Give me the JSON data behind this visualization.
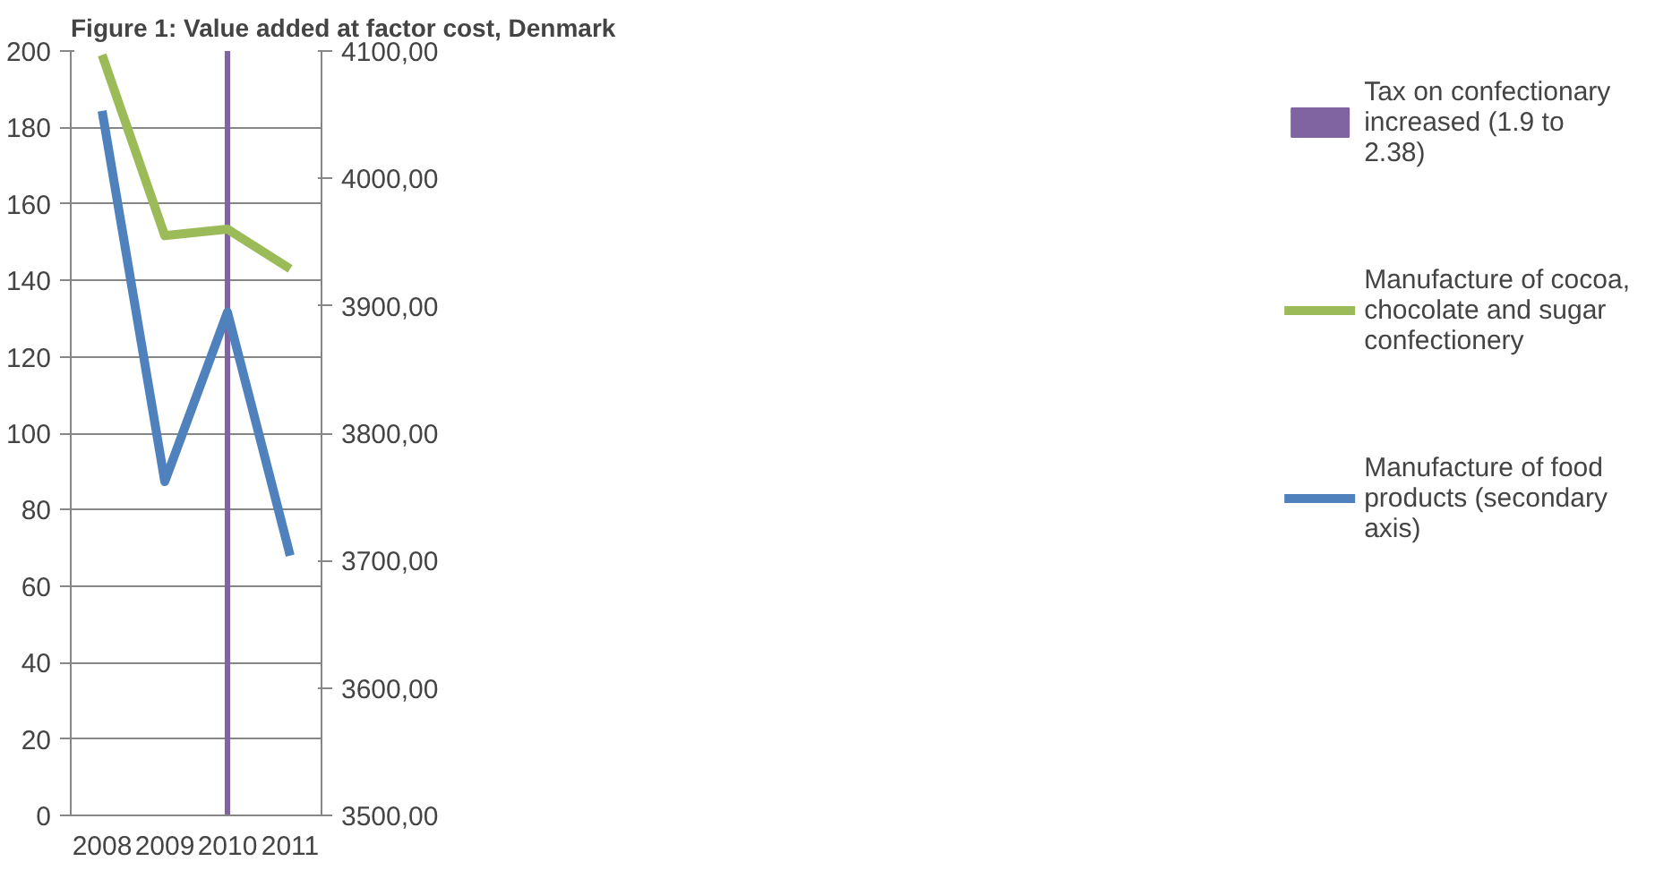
{
  "chart_data": {
    "type": "line",
    "title": "Figure 1: Value added at factor cost, Denmark",
    "categories": [
      "2008",
      "2009",
      "2010",
      "2011"
    ],
    "series": [
      {
        "name": "Tax on confectionary increased (1.9 to 2.38)",
        "type": "bar",
        "color": "#8064a2",
        "values": [
          null,
          null,
          200,
          null
        ]
      },
      {
        "name": "Manufacture of cocoa, chocolate and sugar confectionery",
        "color": "#9bbb59",
        "values": [
          199,
          151.7,
          153.4,
          143
        ]
      },
      {
        "name": "Manufacture of food products (secondary axis)",
        "color": "#4f81bd",
        "axis": "y2",
        "values": [
          4053,
          3762,
          3895,
          3704
        ]
      }
    ],
    "ylim": [
      0,
      200
    ],
    "yticks": [
      0,
      20,
      40,
      60,
      80,
      100,
      120,
      140,
      160,
      180,
      200
    ],
    "y2lim": [
      3500,
      4100
    ],
    "y2ticks": [
      {
        "value": 3500,
        "label": "3500,00"
      },
      {
        "value": 3600,
        "label": "3600,00"
      },
      {
        "value": 3700,
        "label": "3700,00"
      },
      {
        "value": 3800,
        "label": "3800,00"
      },
      {
        "value": 3900,
        "label": "3900,00"
      },
      {
        "value": 4000,
        "label": "4000,00"
      },
      {
        "value": 4100,
        "label": "4100,00"
      }
    ],
    "grid": "y",
    "legend": "right",
    "line_style": "solid",
    "marker": "none"
  }
}
